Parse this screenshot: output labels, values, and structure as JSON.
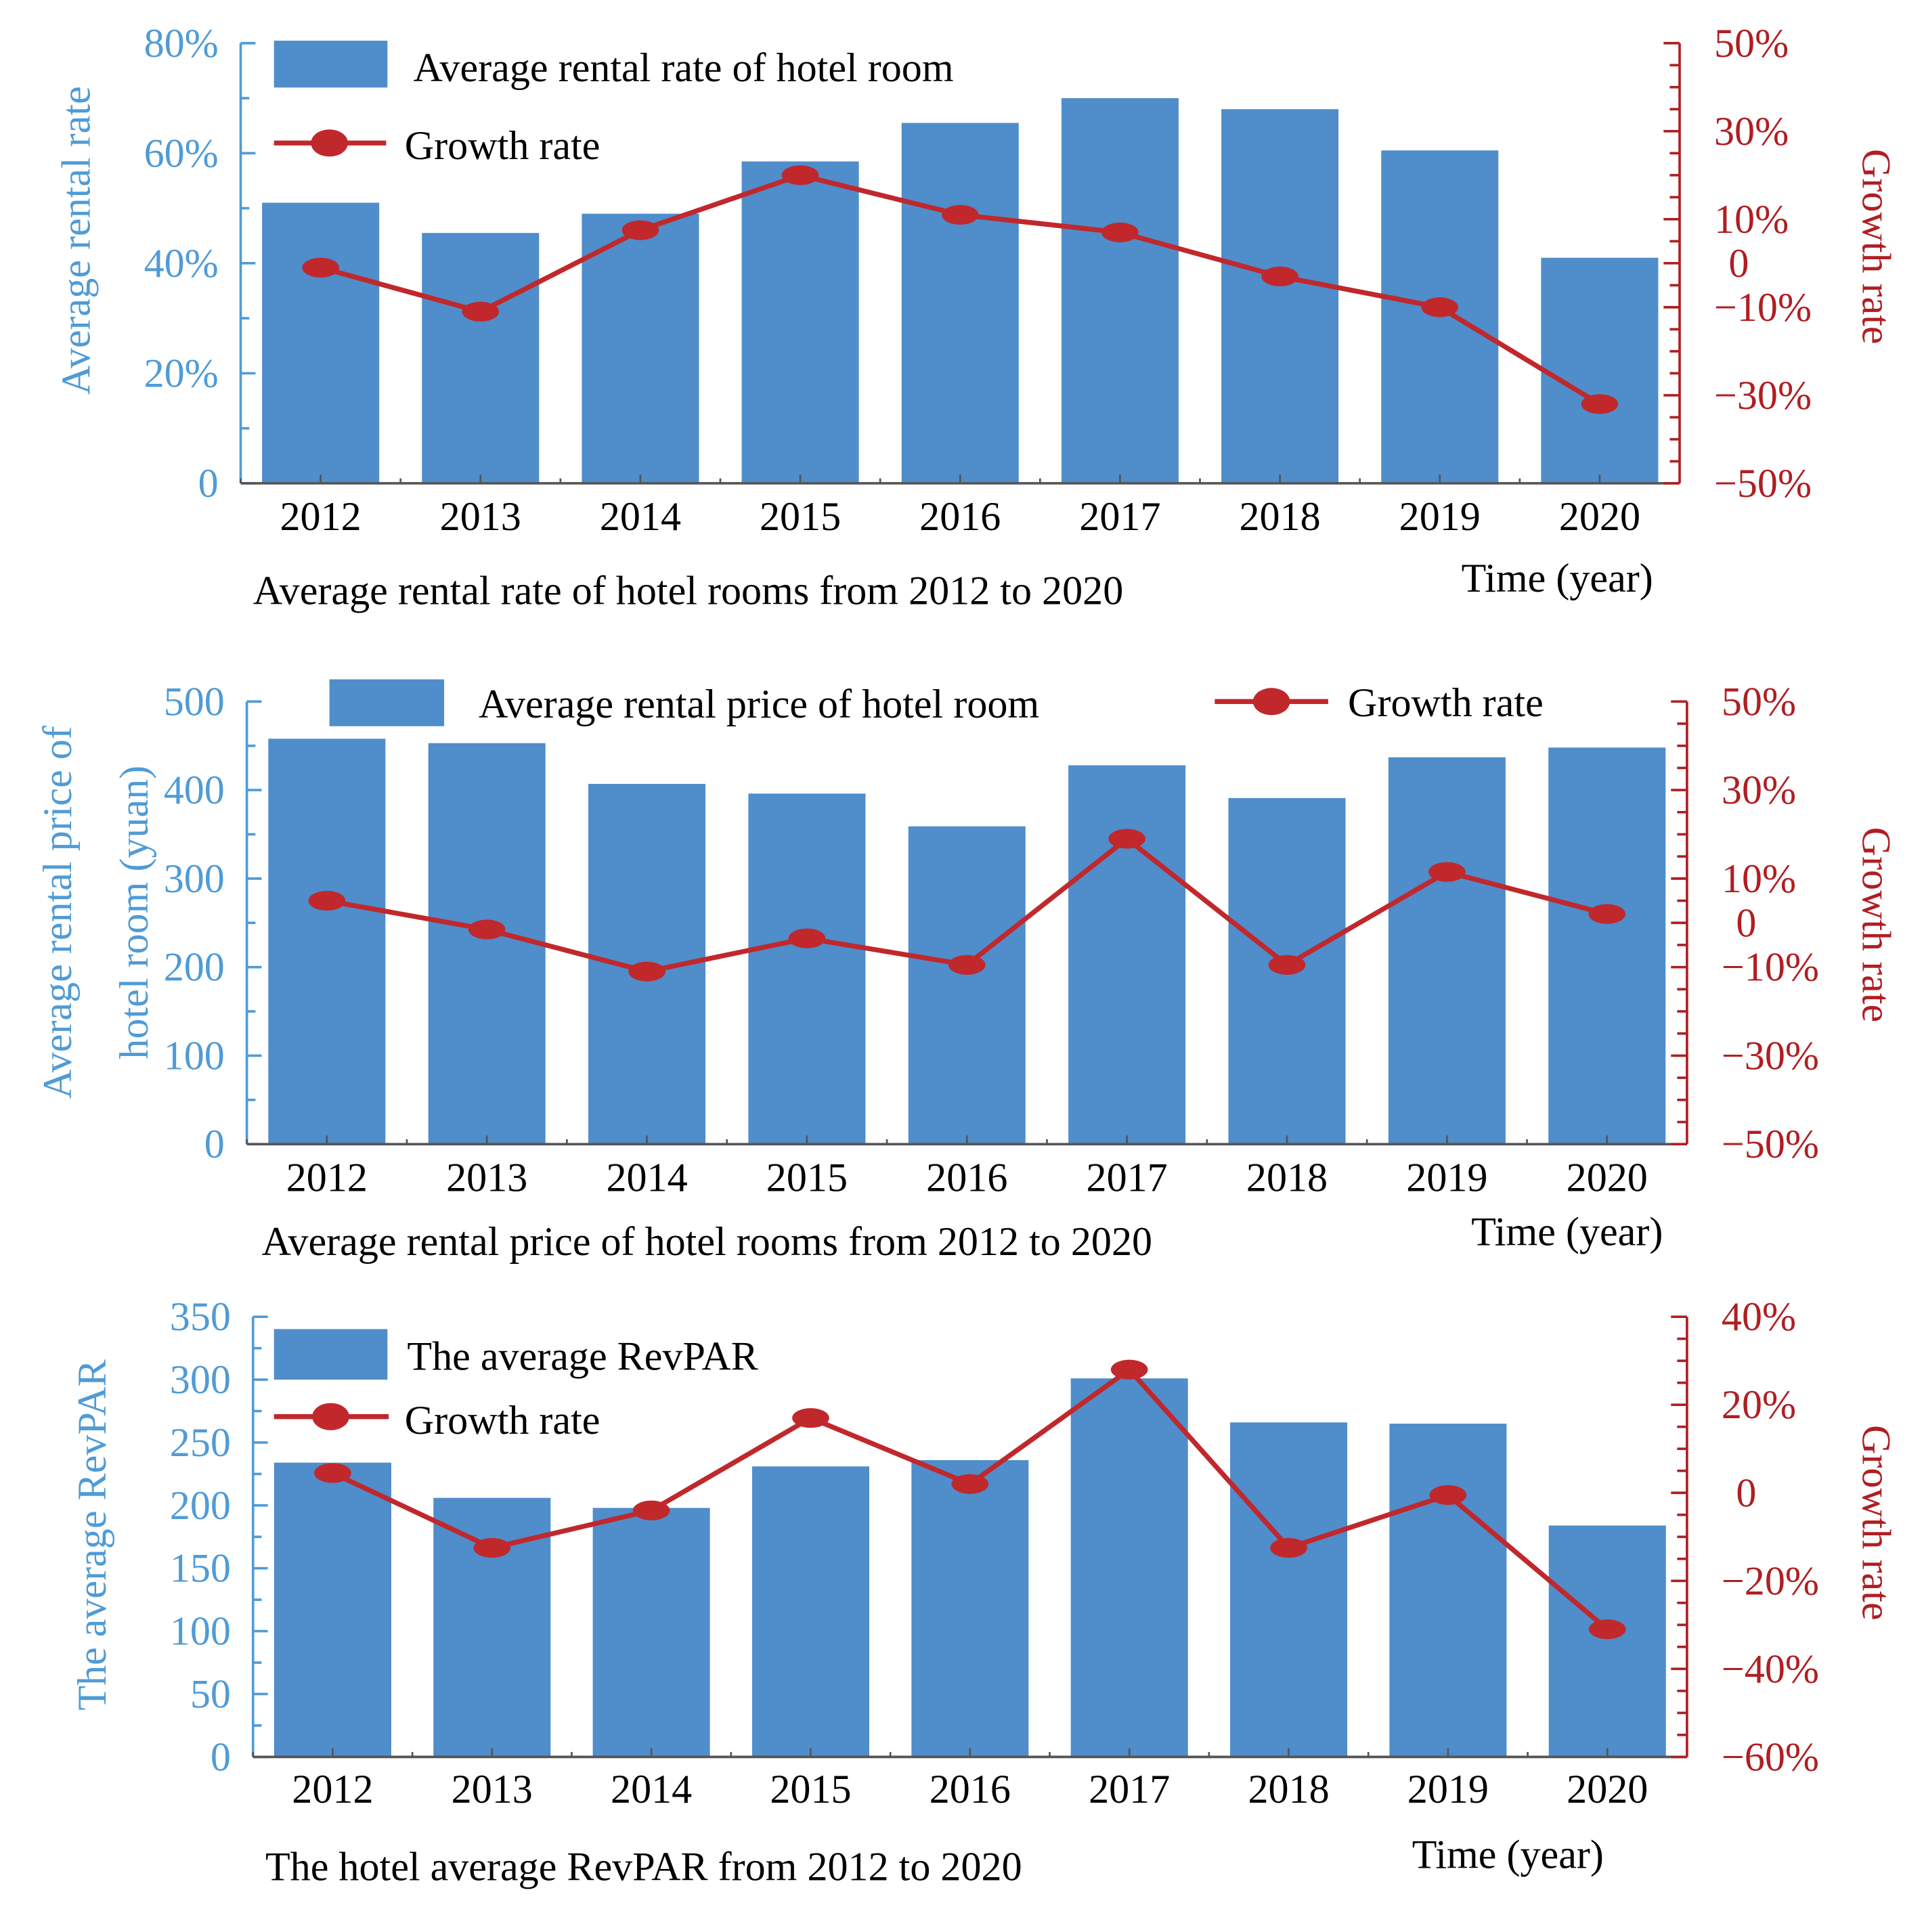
{
  "colors": {
    "bar": "#4f8dcb",
    "left_axis": "#4f9bd6",
    "line": "#c0282c",
    "right_axis": "#b01e22",
    "text": "#000000"
  },
  "chart_data": [
    {
      "type": "bar",
      "title": "Average rental rate of hotel rooms from 2012 to 2020",
      "xlabel": "Time (year)",
      "ylabel": "Average rental rate",
      "y2label": "Growth rate",
      "categories": [
        "2012",
        "2013",
        "2014",
        "2015",
        "2016",
        "2017",
        "2018",
        "2019",
        "2020"
      ],
      "series": [
        {
          "name": "Average rental rate of hotel room",
          "kind": "bar",
          "axis": "left",
          "values": [
            51,
            45.5,
            49,
            58.5,
            65.5,
            70,
            68,
            60.5,
            41
          ]
        },
        {
          "name": "Growth rate",
          "kind": "line",
          "axis": "right",
          "values": [
            -1,
            -11,
            7.5,
            20,
            11,
            7,
            -3,
            -10,
            -32
          ]
        }
      ],
      "ylim": [
        0,
        80
      ],
      "yticks": [
        0,
        20,
        40,
        60,
        80
      ],
      "yticklabels": [
        "0",
        "20%",
        "40%",
        "60%",
        "80%"
      ],
      "y2lim": [
        -50,
        50
      ],
      "y2ticks": [
        -50,
        -30,
        -10,
        0,
        10,
        30,
        50
      ],
      "y2ticklabels": [
        "−50%",
        "−30%",
        "−10%",
        "0",
        "10%",
        "30%",
        "50%"
      ],
      "legend": "top-left",
      "grid": false
    },
    {
      "type": "bar",
      "title": "Average rental price of hotel rooms from 2012 to 2020",
      "xlabel": "Time (year)",
      "ylabel": "Average rental price of hotel room (yuan)",
      "ylabel_lines": [
        "Average rental price of",
        "hotel room (yuan)"
      ],
      "y2label": "Growth rate",
      "categories": [
        "2012",
        "2013",
        "2014",
        "2015",
        "2016",
        "2017",
        "2018",
        "2019",
        "2020"
      ],
      "series": [
        {
          "name": "Average rental price of hotel room",
          "kind": "bar",
          "axis": "left",
          "values": [
            458,
            453,
            407,
            396,
            359,
            428,
            391,
            437,
            448
          ]
        },
        {
          "name": "Growth rate",
          "kind": "line",
          "axis": "right",
          "values": [
            5,
            -1.5,
            -11,
            -3.5,
            -9.5,
            19,
            -9.5,
            11.5,
            2
          ]
        }
      ],
      "ylim": [
        0,
        500
      ],
      "yticks": [
        0,
        100,
        200,
        300,
        400,
        500
      ],
      "yticklabels": [
        "0",
        "100",
        "200",
        "300",
        "400",
        "500"
      ],
      "y2lim": [
        -50,
        50
      ],
      "y2ticks": [
        -50,
        -30,
        -10,
        0,
        10,
        30,
        50
      ],
      "y2ticklabels": [
        "−50%",
        "−30%",
        "−10%",
        "0",
        "10%",
        "30%",
        "50%"
      ],
      "legend": "top",
      "grid": false
    },
    {
      "type": "bar",
      "title": "The hotel average RevPAR from 2012 to 2020",
      "xlabel": "Time (year)",
      "ylabel": "The average RevPAR",
      "y2label": "Growth rate",
      "categories": [
        "2012",
        "2013",
        "2014",
        "2015",
        "2016",
        "2017",
        "2018",
        "2019",
        "2020"
      ],
      "series": [
        {
          "name": "The average RevPAR",
          "kind": "bar",
          "axis": "left",
          "values": [
            234,
            206,
            198,
            231,
            236,
            301,
            266,
            265,
            184
          ]
        },
        {
          "name": "Growth rate",
          "kind": "line",
          "axis": "right",
          "values": [
            4.5,
            -12.5,
            -4,
            17,
            2,
            28,
            -12.5,
            -0.5,
            -31
          ]
        }
      ],
      "ylim": [
        0,
        350
      ],
      "yticks": [
        0,
        50,
        100,
        150,
        200,
        250,
        300,
        350
      ],
      "yticklabels": [
        "0",
        "50",
        "100",
        "150",
        "200",
        "250",
        "300",
        "350"
      ],
      "y2lim": [
        -60,
        40
      ],
      "y2ticks": [
        -60,
        -40,
        -20,
        0,
        20,
        40
      ],
      "y2ticklabels": [
        "−60%",
        "−40%",
        "−20%",
        "0",
        "20%",
        "40%"
      ],
      "legend": "top-left",
      "grid": false
    }
  ]
}
